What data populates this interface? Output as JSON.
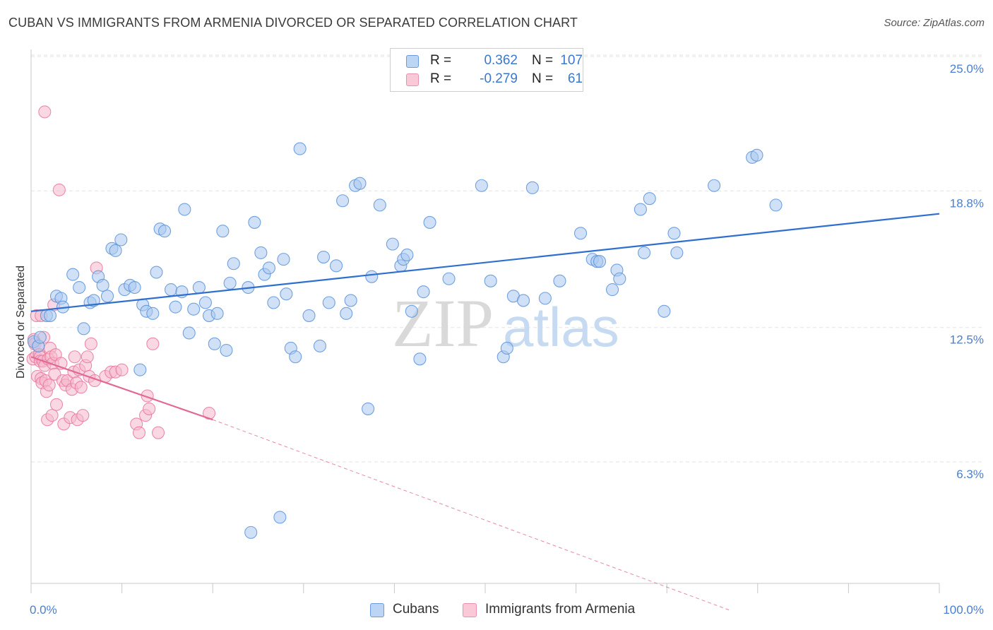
{
  "header": {
    "title": "CUBAN VS IMMIGRANTS FROM ARMENIA DIVORCED OR SEPARATED CORRELATION CHART",
    "source": "Source: ZipAtlas.com"
  },
  "colors": {
    "blue_fill": "#a9c8f0",
    "blue_stroke": "#5b93d9",
    "blue_line": "#2f6fcf",
    "pink_fill": "#f6b8cc",
    "pink_stroke": "#e8799e",
    "pink_line": "#e06a95",
    "tick_text": "#4a7fd0",
    "grid": "#e3e3e3"
  },
  "legend": {
    "rows": [
      {
        "r_label": "R =",
        "r_value": "0.362",
        "n_label": "N =",
        "n_value": "107"
      },
      {
        "r_label": "R =",
        "r_value": "-0.279",
        "n_label": "N =",
        "n_value": "61"
      }
    ]
  },
  "watermark": {
    "zip": "ZIP",
    "atlas": "atlas"
  },
  "chart_data": {
    "type": "scatter",
    "xlabel": "",
    "ylabel": "Divorced or Separated",
    "x_tick_labels": [
      "0.0%",
      "100.0%"
    ],
    "y_tick_labels": [
      "6.3%",
      "12.5%",
      "18.8%",
      "25.0%"
    ],
    "y_ticks": [
      6.3,
      12.5,
      18.8,
      25.0
    ],
    "xlim": [
      0,
      100
    ],
    "ylim": [
      0,
      26
    ],
    "grid": true,
    "legend_placement": "top-center",
    "series": [
      {
        "name": "Cubans",
        "trend": {
          "x0": 0.0,
          "y0": 13.8,
          "x1": 100.0,
          "y1": 18.3
        },
        "points": [
          [
            0.3,
            12.4
          ],
          [
            0.8,
            12.2
          ],
          [
            1.0,
            12.6
          ],
          [
            1.7,
            13.6
          ],
          [
            2.1,
            13.6
          ],
          [
            2.8,
            14.5
          ],
          [
            3.3,
            14.4
          ],
          [
            3.5,
            14.0
          ],
          [
            4.6,
            15.5
          ],
          [
            5.3,
            14.9
          ],
          [
            5.8,
            13.0
          ],
          [
            6.5,
            14.2
          ],
          [
            6.9,
            14.3
          ],
          [
            7.4,
            15.4
          ],
          [
            7.9,
            15.0
          ],
          [
            8.4,
            14.5
          ],
          [
            8.9,
            16.7
          ],
          [
            9.3,
            16.6
          ],
          [
            9.9,
            17.1
          ],
          [
            10.3,
            14.8
          ],
          [
            10.9,
            15.0
          ],
          [
            11.4,
            14.9
          ],
          [
            12.0,
            11.1
          ],
          [
            12.3,
            14.1
          ],
          [
            12.7,
            13.8
          ],
          [
            13.4,
            13.7
          ],
          [
            13.8,
            15.6
          ],
          [
            14.2,
            17.6
          ],
          [
            14.7,
            17.5
          ],
          [
            15.4,
            14.8
          ],
          [
            15.9,
            14.0
          ],
          [
            16.6,
            14.7
          ],
          [
            16.9,
            18.5
          ],
          [
            17.4,
            12.8
          ],
          [
            17.9,
            13.9
          ],
          [
            18.5,
            14.9
          ],
          [
            19.2,
            14.2
          ],
          [
            19.6,
            13.6
          ],
          [
            20.2,
            12.3
          ],
          [
            20.5,
            13.7
          ],
          [
            21.1,
            17.5
          ],
          [
            21.5,
            12.0
          ],
          [
            21.9,
            15.1
          ],
          [
            22.3,
            16.0
          ],
          [
            23.9,
            14.9
          ],
          [
            24.2,
            3.6
          ],
          [
            24.6,
            17.9
          ],
          [
            25.3,
            16.5
          ],
          [
            25.7,
            15.5
          ],
          [
            26.2,
            15.8
          ],
          [
            26.7,
            14.2
          ],
          [
            27.4,
            4.3
          ],
          [
            27.8,
            16.2
          ],
          [
            28.1,
            14.6
          ],
          [
            28.6,
            12.1
          ],
          [
            29.1,
            11.7
          ],
          [
            29.6,
            21.3
          ],
          [
            30.6,
            13.6
          ],
          [
            31.8,
            12.2
          ],
          [
            32.2,
            16.3
          ],
          [
            32.8,
            14.2
          ],
          [
            33.6,
            15.9
          ],
          [
            34.3,
            18.9
          ],
          [
            34.7,
            13.7
          ],
          [
            35.2,
            14.3
          ],
          [
            35.7,
            19.6
          ],
          [
            36.2,
            19.7
          ],
          [
            37.1,
            9.3
          ],
          [
            37.5,
            15.4
          ],
          [
            38.4,
            18.7
          ],
          [
            39.8,
            16.9
          ],
          [
            40.7,
            15.9
          ],
          [
            41.0,
            16.2
          ],
          [
            41.4,
            16.4
          ],
          [
            41.9,
            13.8
          ],
          [
            42.8,
            11.6
          ],
          [
            43.2,
            14.7
          ],
          [
            43.9,
            17.9
          ],
          [
            46.0,
            15.3
          ],
          [
            49.6,
            19.6
          ],
          [
            50.6,
            15.2
          ],
          [
            52.0,
            11.7
          ],
          [
            52.4,
            12.1
          ],
          [
            53.1,
            14.5
          ],
          [
            54.2,
            14.3
          ],
          [
            55.2,
            19.5
          ],
          [
            56.6,
            14.4
          ],
          [
            58.2,
            15.2
          ],
          [
            60.5,
            17.4
          ],
          [
            61.8,
            16.2
          ],
          [
            62.3,
            16.1
          ],
          [
            62.6,
            16.1
          ],
          [
            64.0,
            14.8
          ],
          [
            64.5,
            15.7
          ],
          [
            64.8,
            15.3
          ],
          [
            67.1,
            18.5
          ],
          [
            67.5,
            16.5
          ],
          [
            68.1,
            19.0
          ],
          [
            69.7,
            13.8
          ],
          [
            70.8,
            17.4
          ],
          [
            71.1,
            16.5
          ],
          [
            75.2,
            19.6
          ],
          [
            79.4,
            20.9
          ],
          [
            79.9,
            21.0
          ],
          [
            82.0,
            18.7
          ]
        ]
      },
      {
        "name": "Immigrants from Armenia",
        "trend": {
          "x0": 0.0,
          "y0": 11.7,
          "x1": 20.0,
          "y1": 8.8
        },
        "trend_dashed": {
          "x0": 20.0,
          "y0": 8.8,
          "x1": 77.0,
          "y1": 0.0
        },
        "points": [
          [
            0.2,
            11.6
          ],
          [
            0.3,
            12.5
          ],
          [
            0.4,
            12.3
          ],
          [
            0.5,
            11.7
          ],
          [
            0.6,
            13.6
          ],
          [
            0.7,
            10.8
          ],
          [
            0.8,
            12.2
          ],
          [
            0.9,
            11.8
          ],
          [
            1.0,
            11.7
          ],
          [
            1.0,
            11.5
          ],
          [
            1.1,
            10.7
          ],
          [
            1.1,
            13.6
          ],
          [
            1.2,
            10.5
          ],
          [
            1.3,
            11.5
          ],
          [
            1.4,
            12.6
          ],
          [
            1.5,
            11.3
          ],
          [
            1.6,
            10.6
          ],
          [
            1.7,
            10.1
          ],
          [
            1.8,
            8.8
          ],
          [
            1.9,
            11.6
          ],
          [
            2.0,
            10.4
          ],
          [
            2.1,
            12.1
          ],
          [
            2.2,
            11.7
          ],
          [
            2.3,
            9.0
          ],
          [
            2.4,
            11.4
          ],
          [
            2.5,
            14.1
          ],
          [
            2.6,
            10.9
          ],
          [
            2.7,
            11.8
          ],
          [
            2.8,
            9.5
          ],
          [
            3.1,
            19.4
          ],
          [
            3.3,
            11.4
          ],
          [
            3.5,
            10.6
          ],
          [
            3.6,
            8.6
          ],
          [
            3.8,
            10.4
          ],
          [
            4.0,
            10.6
          ],
          [
            4.3,
            8.9
          ],
          [
            4.5,
            10.2
          ],
          [
            4.7,
            11.0
          ],
          [
            4.8,
            11.7
          ],
          [
            5.0,
            10.5
          ],
          [
            5.1,
            8.8
          ],
          [
            5.3,
            11.1
          ],
          [
            5.5,
            10.3
          ],
          [
            5.7,
            9.0
          ],
          [
            6.0,
            11.3
          ],
          [
            6.2,
            11.7
          ],
          [
            6.4,
            10.8
          ],
          [
            6.6,
            12.3
          ],
          [
            7.0,
            10.6
          ],
          [
            7.2,
            15.8
          ],
          [
            8.2,
            10.8
          ],
          [
            8.8,
            11.0
          ],
          [
            9.3,
            11.0
          ],
          [
            10.0,
            11.1
          ],
          [
            11.6,
            8.6
          ],
          [
            11.9,
            8.2
          ],
          [
            12.6,
            9.0
          ],
          [
            13.0,
            9.3
          ],
          [
            13.4,
            12.3
          ],
          [
            14.0,
            8.2
          ],
          [
            19.6,
            9.1
          ]
        ]
      },
      {
        "name": "",
        "points": [
          [
            1.5,
            23.0
          ],
          [
            12.8,
            9.9
          ]
        ]
      }
    ]
  },
  "bottom_legend": [
    {
      "label": "Cubans"
    },
    {
      "label": "Immigrants from Armenia"
    }
  ]
}
